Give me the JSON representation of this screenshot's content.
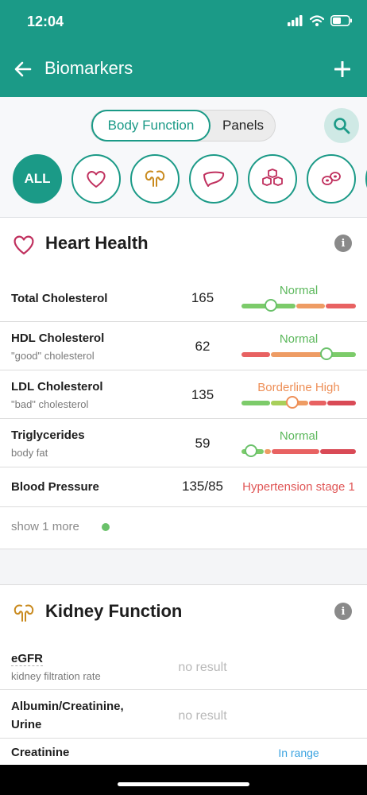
{
  "status_bar": {
    "time": "12:04"
  },
  "app_bar": {
    "title": "Biomarkers"
  },
  "view_toggle": {
    "options": [
      "Body Function",
      "Panels"
    ],
    "selected": "Body Function"
  },
  "category_chips": [
    {
      "label": "ALL",
      "selected": true
    },
    {
      "icon": "heart-icon"
    },
    {
      "icon": "kidney-icon"
    },
    {
      "icon": "liver-icon"
    },
    {
      "icon": "sugar-cubes-icon"
    },
    {
      "icon": "blood-cells-icon"
    }
  ],
  "heart_health": {
    "title": "Heart Health",
    "rows": [
      {
        "name": "Total Cholesterol",
        "subtitle": "",
        "value": "165",
        "status": "Normal",
        "status_color": "#5cb85c",
        "marker_fraction": 0.25
      },
      {
        "name": "HDL Cholesterol",
        "subtitle": "\"good\" cholesterol",
        "value": "62",
        "status": "Normal",
        "status_color": "#5cb85c",
        "marker_fraction": 0.74
      },
      {
        "name": "LDL Cholesterol",
        "subtitle": "\"bad\" cholesterol",
        "value": "135",
        "status": "Borderline High",
        "status_color": "#ee8f57",
        "marker_fraction": 0.44
      },
      {
        "name": "Triglycerides",
        "subtitle": "body fat",
        "value": "59",
        "status": "Normal",
        "status_color": "#5cb85c",
        "marker_fraction": 0.08
      },
      {
        "name": "Blood Pressure",
        "subtitle": "",
        "value": "135/85",
        "status": "Hypertension stage 1",
        "status_color": "#e05656"
      }
    ],
    "show_more": "show 1 more"
  },
  "kidney_function": {
    "title": "Kidney Function",
    "rows": [
      {
        "name": "eGFR",
        "subtitle": "kidney filtration rate",
        "value": "no result"
      },
      {
        "name": "Albumin/Creatinine,",
        "name2": "Urine",
        "value": "no result"
      },
      {
        "name": "Creatinine",
        "status": "In range",
        "status_color": "#3ba3e0"
      }
    ]
  },
  "colors": {
    "primary": "#1b9a87",
    "normal": "#5cb85c",
    "warning": "#ee8f57",
    "danger": "#e05656",
    "info": "#3ba3e0"
  }
}
